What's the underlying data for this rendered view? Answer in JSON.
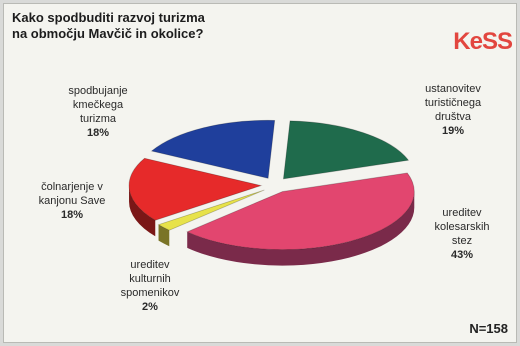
{
  "title_lines": [
    "Kako spodbuditi razvoj turizma",
    "na območju Mavčič in okolice?"
  ],
  "logo": {
    "text": "KeSS"
  },
  "sample_size": "N=158",
  "chart_data": {
    "type": "pie",
    "title": "Kako spodbuditi razvoj turizma na območju Mavčič in okolice?",
    "slices": [
      {
        "label_lines": [
          "ustanovitev",
          "turističnega",
          "društva"
        ],
        "value": 19,
        "percent_label": "19%",
        "color": "#1f6b4c",
        "side": "#0f3d2b"
      },
      {
        "label_lines": [
          "ureditev",
          "kolesarskih",
          "stez"
        ],
        "value": 43,
        "percent_label": "43%",
        "color": "#e2466f",
        "side": "#7a2a4a"
      },
      {
        "label_lines": [
          "ureditev",
          "kulturnih",
          "spomenikov"
        ],
        "value": 2,
        "percent_label": "2%",
        "color": "#e7e24a",
        "side": "#7a7426"
      },
      {
        "label_lines": [
          "čolnarjenje v",
          "kanjonu Save"
        ],
        "value": 18,
        "percent_label": "18%",
        "color": "#e62a2a",
        "side": "#7a1717"
      },
      {
        "label_lines": [
          "spodbujanje",
          "kmečkega",
          "turizma"
        ],
        "value": 18,
        "percent_label": "18%",
        "color": "#1f3f9c",
        "side": "#102255"
      }
    ]
  }
}
